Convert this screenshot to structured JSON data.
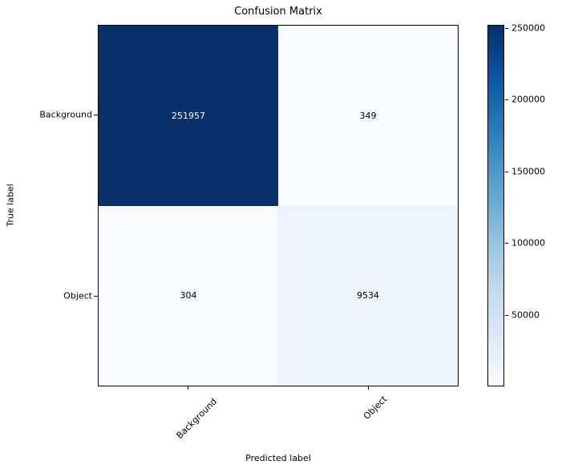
{
  "chart_data": {
    "type": "heatmap",
    "title": "Confusion Matrix",
    "xlabel": "Predicted label",
    "ylabel": "True label",
    "x_tick_labels": [
      "Background",
      "Object"
    ],
    "y_tick_labels": [
      "Background",
      "Object"
    ],
    "x_tick_rotation_deg": 45,
    "matrix": [
      [
        251957,
        349
      ],
      [
        304,
        9534
      ]
    ],
    "cell_colors": [
      [
        "#08306b",
        "#f7fbff"
      ],
      [
        "#f7fbff",
        "#edf4fb"
      ]
    ],
    "cell_text_colors": [
      [
        "#ffffff",
        "#000000"
      ],
      [
        "#000000",
        "#000000"
      ]
    ],
    "colormap": "Blues",
    "grid": false,
    "colorbar": {
      "vmin": 304,
      "vmax": 251957,
      "ticks": [
        50000,
        100000,
        150000,
        200000,
        250000
      ],
      "gradient_stops_bottom_to_top": [
        "#f7fbff",
        "#deebf7",
        "#c6dbef",
        "#9ecae1",
        "#6baed6",
        "#4292c6",
        "#2171b5",
        "#08519c",
        "#08306b"
      ]
    }
  }
}
